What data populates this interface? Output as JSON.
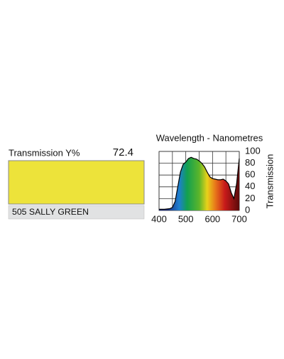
{
  "swatch": {
    "label": "Transmission Y%",
    "value": 72.4,
    "name": "505 SALLY GREEN",
    "color": "#ede33a"
  },
  "chart_data": {
    "type": "area",
    "title": "Wavelength - Nanometres",
    "y_label": "Transmission",
    "x": [
      400,
      420,
      440,
      450,
      460,
      470,
      480,
      490,
      500,
      510,
      520,
      530,
      540,
      550,
      560,
      570,
      580,
      590,
      600,
      610,
      620,
      630,
      640,
      650,
      660,
      670,
      680,
      690,
      700
    ],
    "values": [
      2,
      2,
      3,
      5,
      15,
      40,
      65,
      78,
      82,
      88,
      90,
      88,
      87,
      84,
      80,
      74,
      65,
      57,
      54,
      53,
      52,
      52,
      53,
      50,
      45,
      30,
      20,
      45,
      88
    ],
    "xlim": [
      400,
      700
    ],
    "ylim": [
      0,
      100
    ],
    "xticks": [
      400,
      500,
      600,
      700
    ],
    "minor_xticks": [
      450,
      550,
      650
    ],
    "yticks": [
      0,
      20,
      40,
      60,
      80,
      100
    ],
    "grid": true,
    "line_color": "#000000"
  }
}
